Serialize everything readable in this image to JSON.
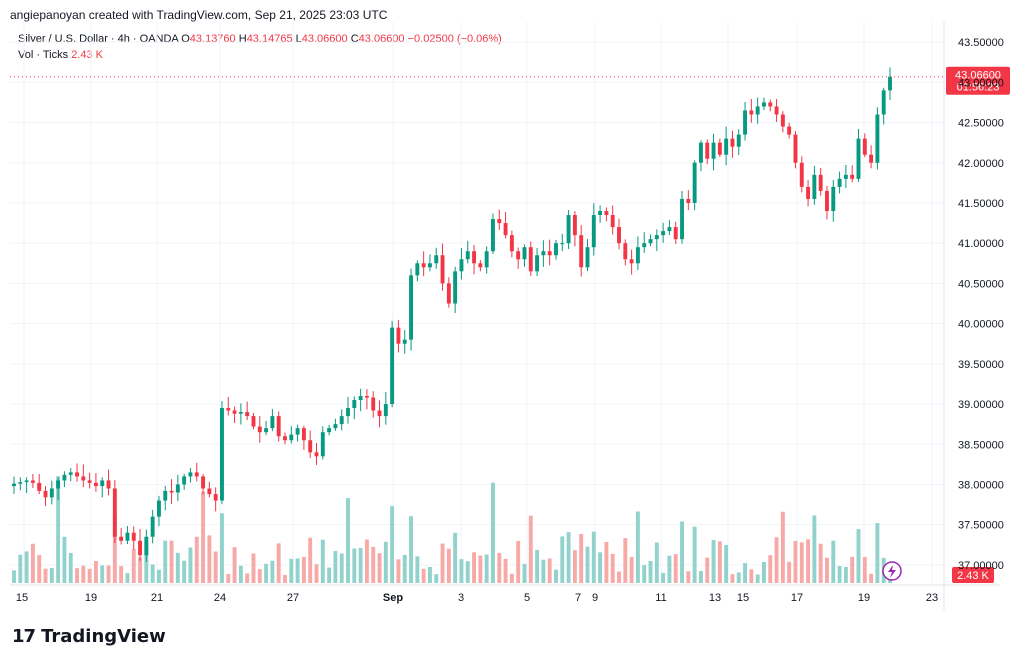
{
  "header": {
    "credit": "angiepanoyan created with TradingView.com, Sep 21, 2025 23:03 UTC"
  },
  "legend": {
    "symbol": "Silver / U.S. Dollar · 4h · OANDA",
    "o_label": "O",
    "o_value": "43.13760",
    "h_label": "H",
    "h_value": "43.14765",
    "l_label": "L",
    "l_value": "43.06600",
    "c_label": "C",
    "c_value": "43.06600",
    "change": "−0.02500 (−0.06%)",
    "vol_label": "Vol · Ticks",
    "vol_value": "2.43 K"
  },
  "logo": {
    "mark": "17",
    "text": "TradingView"
  },
  "colors": {
    "up": "#089981",
    "down": "#f23645",
    "vol_up": "#92d2cc",
    "vol_down": "#f7a9a7",
    "grid": "#f0f3fa",
    "axis_text": "#131722"
  },
  "chart_data": {
    "type": "candlestick",
    "title": "Silver / U.S. Dollar · 4h · OANDA",
    "ylim": [
      36.75,
      43.75
    ],
    "y_ticks": [
      "43.50000",
      "43.00000",
      "42.50000",
      "42.00000",
      "41.50000",
      "41.00000",
      "40.50000",
      "40.00000",
      "39.50000",
      "39.00000",
      "38.50000",
      "38.00000",
      "37.50000",
      "37.00000"
    ],
    "x_ticks": [
      "15",
      "19",
      "21",
      "24",
      "27",
      "Sep",
      "3",
      "5",
      "7",
      "9",
      "11",
      "13",
      "15",
      "17",
      "19",
      "23"
    ],
    "last_price_label": "43.06600",
    "countdown_label": "01:56:23",
    "volume_label": "2.43 K",
    "close": [
      38.01,
      38.03,
      38.05,
      38.02,
      37.92,
      37.84,
      37.95,
      38.05,
      38.12,
      38.15,
      38.1,
      38.05,
      38.02,
      37.98,
      38.05,
      37.95,
      37.35,
      37.3,
      37.4,
      37.3,
      37.12,
      37.35,
      37.6,
      37.8,
      37.92,
      37.9,
      38.0,
      38.1,
      38.15,
      38.1,
      37.95,
      37.88,
      37.8,
      38.95,
      38.92,
      38.88,
      38.9,
      38.85,
      38.72,
      38.65,
      38.7,
      38.85,
      38.6,
      38.55,
      38.62,
      38.7,
      38.55,
      38.4,
      38.35,
      38.65,
      38.7,
      38.75,
      38.85,
      38.95,
      39.05,
      39.1,
      39.08,
      38.92,
      38.85,
      39.0,
      39.95,
      39.75,
      39.8,
      40.6,
      40.75,
      40.7,
      40.75,
      40.85,
      40.5,
      40.25,
      40.65,
      40.8,
      40.9,
      40.75,
      40.7,
      40.9,
      41.3,
      41.25,
      41.1,
      40.9,
      40.8,
      40.95,
      40.65,
      40.85,
      40.9,
      40.85,
      41.0,
      41.0,
      41.35,
      41.1,
      40.7,
      40.95,
      41.35,
      41.4,
      41.35,
      41.2,
      41.0,
      40.8,
      40.75,
      40.95,
      41.0,
      41.05,
      41.1,
      41.15,
      41.2,
      41.05,
      41.55,
      41.5,
      42.0,
      42.25,
      42.05,
      42.25,
      42.1,
      42.3,
      42.2,
      42.35,
      42.65,
      42.6,
      42.7,
      42.75,
      42.7,
      42.6,
      42.45,
      42.35,
      42.0,
      41.7,
      41.55,
      41.85,
      41.65,
      41.4,
      41.7,
      41.8,
      41.85,
      41.8,
      42.3,
      42.1,
      42.0,
      42.6,
      42.9,
      43.07
    ]
  }
}
